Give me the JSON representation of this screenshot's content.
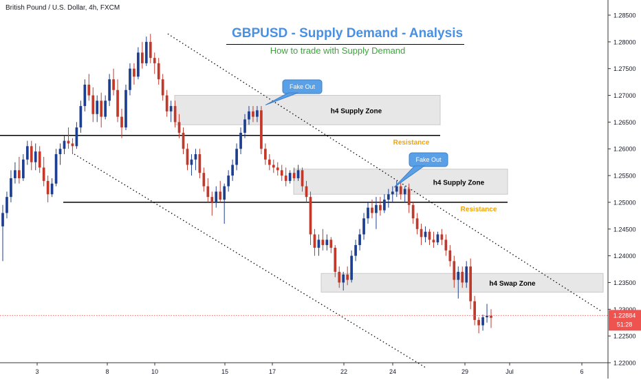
{
  "header": {
    "symbol_label": "British Pound / U.S. Dollar, 4h, FXCM"
  },
  "title": "GBPUSD - Supply Demand - Analysis",
  "subtitle": "How to trade with Supply Demand",
  "price_axis": {
    "ticks": [
      "1.28500",
      "1.28000",
      "1.27500",
      "1.27000",
      "1.26500",
      "1.26000",
      "1.25500",
      "1.25000",
      "1.24500",
      "1.24000",
      "1.23500",
      "1.23000",
      "1.22500",
      "1.22000"
    ],
    "current_price": "1.22884",
    "countdown": "51:28",
    "current_price_color": "#ef5350"
  },
  "time_axis": {
    "ticks": [
      "3",
      "8",
      "10",
      "15",
      "17",
      "22",
      "24",
      "29",
      "Jul",
      "6"
    ]
  },
  "colors": {
    "bull_candle": "#1e3f8f",
    "bear_candle": "#c0392b",
    "zone_fill": "#e3e3e3",
    "resistance_text": "#f0a500",
    "callout_fill": "#5aa0e6"
  },
  "chart_data": {
    "type": "candlestick",
    "symbol": "British Pound / U.S. Dollar",
    "timeframe": "4h",
    "source": "FXCM",
    "ylim": [
      1.2185,
      1.2875
    ],
    "price_scale": "right",
    "grid": false,
    "candles": [
      [
        1.2455,
        1.2495,
        1.239,
        1.248
      ],
      [
        1.248,
        1.252,
        1.247,
        1.251
      ],
      [
        1.251,
        1.256,
        1.25,
        1.2545
      ],
      [
        1.2545,
        1.2575,
        1.2535,
        1.256
      ],
      [
        1.256,
        1.2585,
        1.2535,
        1.2545
      ],
      [
        1.2545,
        1.259,
        1.254,
        1.258
      ],
      [
        1.258,
        1.2615,
        1.257,
        1.2605
      ],
      [
        1.2605,
        1.2615,
        1.256,
        1.2575
      ],
      [
        1.2575,
        1.261,
        1.256,
        1.2595
      ],
      [
        1.2595,
        1.2605,
        1.2555,
        1.2565
      ],
      [
        1.2565,
        1.2585,
        1.253,
        1.254
      ],
      [
        1.254,
        1.255,
        1.25,
        1.2515
      ],
      [
        1.2515,
        1.2545,
        1.251,
        1.2535
      ],
      [
        1.2535,
        1.26,
        1.253,
        1.259
      ],
      [
        1.259,
        1.261,
        1.257,
        1.26
      ],
      [
        1.26,
        1.2625,
        1.259,
        1.2615
      ],
      [
        1.2615,
        1.264,
        1.26,
        1.261
      ],
      [
        1.261,
        1.262,
        1.259,
        1.2605
      ],
      [
        1.2605,
        1.265,
        1.26,
        1.264
      ],
      [
        1.264,
        1.269,
        1.263,
        1.268
      ],
      [
        1.268,
        1.273,
        1.267,
        1.272
      ],
      [
        1.272,
        1.274,
        1.269,
        1.27
      ],
      [
        1.27,
        1.2715,
        1.265,
        1.2665
      ],
      [
        1.2665,
        1.27,
        1.265,
        1.269
      ],
      [
        1.269,
        1.2705,
        1.264,
        1.266
      ],
      [
        1.266,
        1.27,
        1.2655,
        1.269
      ],
      [
        1.269,
        1.274,
        1.268,
        1.273
      ],
      [
        1.273,
        1.275,
        1.27,
        1.271
      ],
      [
        1.271,
        1.273,
        1.265,
        1.266
      ],
      [
        1.266,
        1.2675,
        1.262,
        1.264
      ],
      [
        1.264,
        1.272,
        1.2635,
        1.271
      ],
      [
        1.271,
        1.276,
        1.27,
        1.275
      ],
      [
        1.275,
        1.276,
        1.272,
        1.2735
      ],
      [
        1.2735,
        1.279,
        1.273,
        1.278
      ],
      [
        1.278,
        1.28,
        1.275,
        1.276
      ],
      [
        1.276,
        1.281,
        1.2755,
        1.28
      ],
      [
        1.28,
        1.2815,
        1.276,
        1.277
      ],
      [
        1.277,
        1.278,
        1.274,
        1.276
      ],
      [
        1.276,
        1.277,
        1.272,
        1.273
      ],
      [
        1.273,
        1.274,
        1.269,
        1.27
      ],
      [
        1.27,
        1.271,
        1.266,
        1.267
      ],
      [
        1.267,
        1.269,
        1.265,
        1.268
      ],
      [
        1.268,
        1.269,
        1.264,
        1.265
      ],
      [
        1.265,
        1.2665,
        1.262,
        1.263
      ],
      [
        1.263,
        1.264,
        1.259,
        1.26
      ],
      [
        1.26,
        1.261,
        1.256,
        1.257
      ],
      [
        1.257,
        1.259,
        1.255,
        1.258
      ],
      [
        1.258,
        1.26,
        1.256,
        1.259
      ],
      [
        1.259,
        1.26,
        1.2545,
        1.2555
      ],
      [
        1.2555,
        1.2565,
        1.252,
        1.253
      ],
      [
        1.253,
        1.2545,
        1.25,
        1.251
      ],
      [
        1.251,
        1.252,
        1.2475,
        1.25
      ],
      [
        1.25,
        1.253,
        1.249,
        1.252
      ],
      [
        1.252,
        1.254,
        1.25,
        1.2505
      ],
      [
        1.2505,
        1.2535,
        1.246,
        1.253
      ],
      [
        1.253,
        1.256,
        1.252,
        1.255
      ],
      [
        1.255,
        1.258,
        1.254,
        1.257
      ],
      [
        1.257,
        1.261,
        1.256,
        1.26
      ],
      [
        1.26,
        1.264,
        1.259,
        1.263
      ],
      [
        1.263,
        1.2665,
        1.262,
        1.2655
      ],
      [
        1.2655,
        1.268,
        1.2645,
        1.267
      ],
      [
        1.267,
        1.268,
        1.265,
        1.266
      ],
      [
        1.266,
        1.268,
        1.265,
        1.2672
      ],
      [
        1.2672,
        1.268,
        1.259,
        1.26
      ],
      [
        1.26,
        1.261,
        1.257,
        1.258
      ],
      [
        1.258,
        1.259,
        1.256,
        1.257
      ],
      [
        1.257,
        1.258,
        1.2555,
        1.2565
      ],
      [
        1.2565,
        1.2575,
        1.255,
        1.256
      ],
      [
        1.256,
        1.257,
        1.254,
        1.255
      ],
      [
        1.255,
        1.2565,
        1.253,
        1.254
      ],
      [
        1.254,
        1.256,
        1.2535,
        1.2555
      ],
      [
        1.2555,
        1.2565,
        1.254,
        1.2545
      ],
      [
        1.2545,
        1.257,
        1.254,
        1.256
      ],
      [
        1.256,
        1.2565,
        1.252,
        1.253
      ],
      [
        1.253,
        1.254,
        1.25,
        1.251
      ],
      [
        1.251,
        1.252,
        1.242,
        1.244
      ],
      [
        1.244,
        1.245,
        1.24,
        1.2415
      ],
      [
        1.2415,
        1.244,
        1.24,
        1.243
      ],
      [
        1.243,
        1.245,
        1.241,
        1.242
      ],
      [
        1.242,
        1.244,
        1.241,
        1.243
      ],
      [
        1.243,
        1.2435,
        1.2405,
        1.2415
      ],
      [
        1.2415,
        1.242,
        1.236,
        1.237
      ],
      [
        1.237,
        1.238,
        1.234,
        1.235
      ],
      [
        1.235,
        1.237,
        1.2335,
        1.2365
      ],
      [
        1.2365,
        1.238,
        1.2345,
        1.2355
      ],
      [
        1.2355,
        1.241,
        1.235,
        1.24
      ],
      [
        1.24,
        1.243,
        1.239,
        1.242
      ],
      [
        1.242,
        1.245,
        1.241,
        1.244
      ],
      [
        1.244,
        1.248,
        1.243,
        1.247
      ],
      [
        1.247,
        1.25,
        1.246,
        1.249
      ],
      [
        1.249,
        1.2505,
        1.247,
        1.248
      ],
      [
        1.248,
        1.251,
        1.245,
        1.2495
      ],
      [
        1.2495,
        1.251,
        1.2475,
        1.2485
      ],
      [
        1.2485,
        1.2515,
        1.248,
        1.2505
      ],
      [
        1.2505,
        1.2525,
        1.249,
        1.2515
      ],
      [
        1.2515,
        1.253,
        1.25,
        1.252
      ],
      [
        1.252,
        1.254,
        1.251,
        1.253
      ],
      [
        1.253,
        1.254,
        1.2505,
        1.2515
      ],
      [
        1.2515,
        1.253,
        1.25,
        1.2525
      ],
      [
        1.2525,
        1.2535,
        1.248,
        1.2495
      ],
      [
        1.2495,
        1.25,
        1.246,
        1.247
      ],
      [
        1.247,
        1.248,
        1.244,
        1.245
      ],
      [
        1.245,
        1.246,
        1.242,
        1.2435
      ],
      [
        1.2435,
        1.2455,
        1.2425,
        1.2445
      ],
      [
        1.2445,
        1.245,
        1.242,
        1.243
      ],
      [
        1.243,
        1.2445,
        1.2415,
        1.2425
      ],
      [
        1.2425,
        1.2445,
        1.242,
        1.244
      ],
      [
        1.244,
        1.245,
        1.242,
        1.243
      ],
      [
        1.243,
        1.244,
        1.24,
        1.241
      ],
      [
        1.241,
        1.242,
        1.238,
        1.239
      ],
      [
        1.239,
        1.24,
        1.234,
        1.2355
      ],
      [
        1.2355,
        1.238,
        1.232,
        1.237
      ],
      [
        1.237,
        1.238,
        1.234,
        1.235
      ],
      [
        1.235,
        1.239,
        1.234,
        1.238
      ],
      [
        1.238,
        1.2395,
        1.23,
        1.2315
      ],
      [
        1.2315,
        1.2325,
        1.227,
        1.228
      ],
      [
        1.228,
        1.2285,
        1.2255,
        1.227
      ],
      [
        1.227,
        1.229,
        1.226,
        1.2285
      ],
      [
        1.2285,
        1.231,
        1.2275,
        1.2288
      ],
      [
        1.2288,
        1.23,
        1.2265,
        1.2284
      ]
    ],
    "levels": [
      {
        "label": "Resistance",
        "price": 1.2625
      },
      {
        "label": "Resistance",
        "price": 1.25
      }
    ],
    "zones": [
      {
        "label": "h4 Supply Zone",
        "from": 1.2645,
        "to": 1.27
      },
      {
        "label": "h4 Supply Zone",
        "from": 1.2515,
        "to": 1.2562
      },
      {
        "label": "h4 Swap Zone",
        "from": 1.2332,
        "to": 1.2367
      }
    ],
    "callouts": [
      {
        "label": "Fake Out"
      },
      {
        "label": "Fake Out"
      }
    ],
    "trendlines": [
      {
        "style": "dotted",
        "from_price": 1.2815,
        "to_price": 1.2295
      },
      {
        "style": "dotted",
        "from_price": 1.259,
        "to_price": 1.219
      }
    ]
  }
}
